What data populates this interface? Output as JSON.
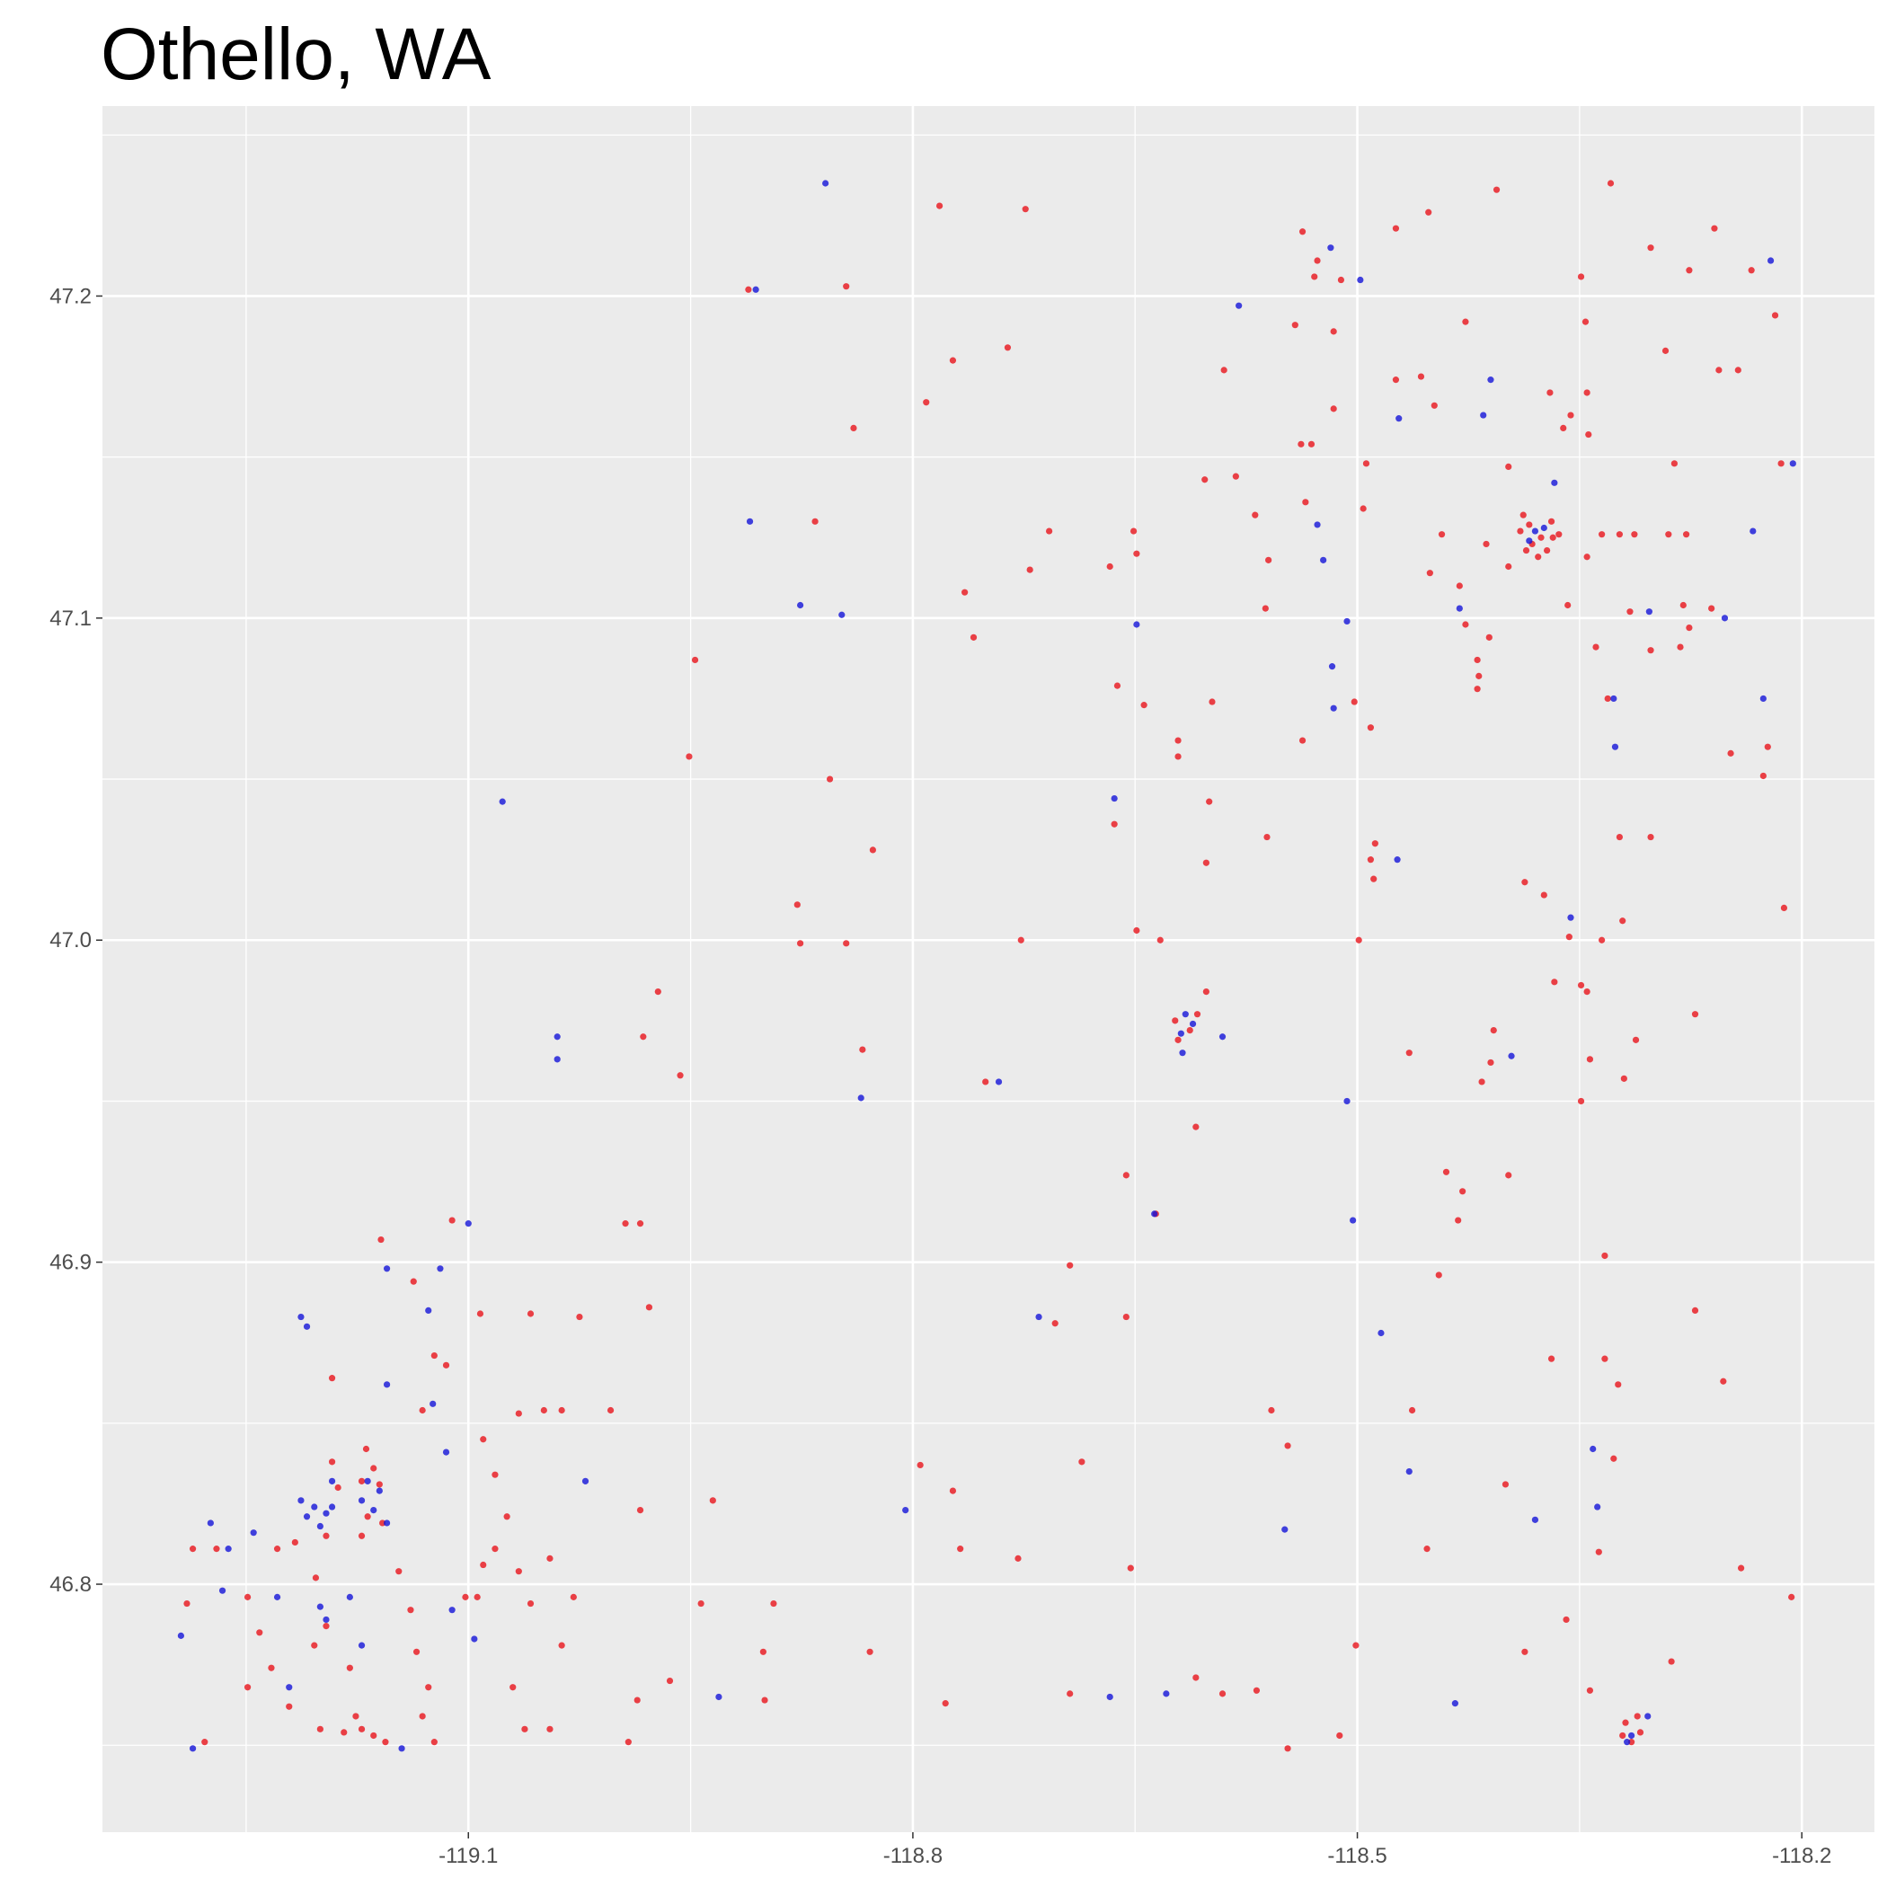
{
  "chart_data": {
    "type": "scatter",
    "title": "Othello, WA",
    "xlim": [
      -119.347,
      -118.151
    ],
    "ylim": [
      46.723,
      47.259
    ],
    "xticks": [
      -119.1,
      -118.8,
      -118.5,
      -118.2
    ],
    "yticks": [
      46.8,
      46.9,
      {
        "value": 47,
        "label": "47.0"
      },
      47.1,
      47.2
    ],
    "grid": true,
    "series": [
      {
        "color": "#e8141c",
        "x": [
          -119.192,
          -119.188,
          -119.196,
          -119.217,
          -119.229,
          -119.249,
          -119.241,
          -119.233,
          -119.221,
          -119.204,
          -119.196,
          -119.18,
          -119.176,
          -119.172,
          -119.164,
          -119.156,
          -119.184,
          -119.2,
          -119.249,
          -119.27,
          -119.29,
          -119.278,
          -119.286,
          -119.147,
          -119.139,
          -119.135,
          -119.127,
          -119.131,
          -119.123,
          -119.102,
          -119.094,
          -119.09,
          -119.082,
          -119.074,
          -119.066,
          -119.058,
          -119.045,
          -119.037,
          -119.029,
          -119.07,
          -119.062,
          -119.045,
          -119.131,
          -119.123,
          -119.115,
          -119.111,
          -119.092,
          -119.058,
          -119.025,
          -119.09,
          -119.082,
          -119.066,
          -119.049,
          -119.037,
          -119.004,
          -118.994,
          -118.984,
          -118.978,
          -118.992,
          -118.986,
          -118.984,
          -118.964,
          -118.943,
          -118.935,
          -118.894,
          -118.901,
          -118.9,
          -118.829,
          -119.137,
          -119.159,
          -119.169,
          -119.192,
          -119.203,
          -118.782,
          -118.724,
          -118.845,
          -118.911,
          -118.84,
          -118.791,
          -118.773,
          -118.736,
          -118.866,
          -118.708,
          -118.721,
          -118.765,
          -118.759,
          -118.947,
          -118.951,
          -118.856,
          -118.827,
          -118.878,
          -118.876,
          -118.845,
          -118.727,
          -118.834,
          -118.972,
          -118.982,
          -118.957,
          -118.751,
          -118.795,
          -118.773,
          -118.768,
          -118.729,
          -118.694,
          -118.704,
          -118.686,
          -118.653,
          -118.656,
          -118.656,
          -118.636,
          -118.633,
          -118.649,
          -118.664,
          -118.662,
          -118.644,
          -118.621,
          -118.621,
          -118.6,
          -118.602,
          -118.609,
          -118.602,
          -118.598,
          -118.651,
          -118.649,
          -118.667,
          -118.59,
          -118.603,
          -118.582,
          -118.569,
          -118.56,
          -118.562,
          -118.542,
          -118.537,
          -118.527,
          -118.529,
          -118.516,
          -118.516,
          -118.531,
          -118.538,
          -118.535,
          -118.496,
          -118.494,
          -118.511,
          -118.474,
          -118.452,
          -118.406,
          -118.427,
          -118.474,
          -118.457,
          -118.448,
          -118.443,
          -118.451,
          -118.431,
          -118.427,
          -118.411,
          -118.419,
          -118.418,
          -118.419,
          -118.398,
          -118.37,
          -118.361,
          -118.356,
          -118.345,
          -118.344,
          -118.358,
          -118.349,
          -118.346,
          -118.329,
          -118.302,
          -118.292,
          -118.276,
          -118.259,
          -118.286,
          -118.276,
          -118.282,
          -118.28,
          -118.261,
          -118.302,
          -118.316,
          -118.339,
          -118.331,
          -118.323,
          -118.313,
          -118.29,
          -118.278,
          -118.256,
          -118.243,
          -118.234,
          -118.218,
          -118.214,
          -118.223,
          -118.248,
          -118.226,
          -118.212,
          -118.272,
          -118.364,
          -118.335,
          -118.345,
          -118.413,
          -118.398,
          -118.387,
          -118.374,
          -118.357,
          -118.335,
          -118.321,
          -118.367,
          -118.349,
          -118.345,
          -118.343,
          -118.349,
          -118.32,
          -118.312,
          -118.323,
          -118.302,
          -118.408,
          -118.41,
          -118.416,
          -118.398,
          -118.44,
          -118.432,
          -118.429,
          -118.445,
          -118.465,
          -118.488,
          -118.491,
          -118.489,
          -118.499,
          -118.491,
          -118.502,
          -118.537,
          -118.561,
          -118.333,
          -118.333,
          -118.324,
          -118.327,
          -118.337,
          -118.359,
          -118.369,
          -118.272,
          -118.253,
          -118.241,
          -118.207,
          -118.387,
          -118.343,
          -118.288,
          -118.4,
          -118.463,
          -118.501,
          -118.512,
          -118.547,
          -118.568,
          -118.591,
          -118.609,
          -118.694,
          -118.778,
          -118.558,
          -118.547,
          -118.453,
          -118.388,
          -118.384,
          -118.376,
          -118.372,
          -118.382,
          -118.39,
          -118.369,
          -118.378,
          -118.386,
          -118.368,
          -118.623,
          -118.613,
          -118.621,
          -118.608,
          -118.319,
          -118.311,
          -118.315,
          -118.309,
          -118.321,
          -119.172,
          -119.16,
          -119.168,
          -119.158,
          -119.172,
          -119.164
        ],
        "values": [
          46.838,
          46.83,
          46.815,
          46.813,
          46.811,
          46.796,
          46.785,
          46.774,
          46.762,
          46.781,
          46.787,
          46.774,
          46.759,
          46.755,
          46.753,
          46.751,
          46.754,
          46.755,
          46.768,
          46.811,
          46.794,
          46.751,
          46.811,
          46.804,
          46.792,
          46.779,
          46.768,
          46.759,
          46.751,
          46.796,
          46.796,
          46.806,
          46.811,
          46.821,
          46.804,
          46.794,
          46.808,
          46.781,
          46.796,
          46.768,
          46.755,
          46.755,
          46.854,
          46.871,
          46.868,
          46.913,
          46.884,
          46.884,
          46.883,
          46.845,
          46.834,
          46.853,
          46.854,
          46.854,
          46.854,
          46.912,
          46.912,
          46.886,
          46.751,
          46.764,
          46.823,
          46.77,
          46.794,
          46.826,
          46.794,
          46.779,
          46.764,
          46.779,
          46.894,
          46.907,
          46.842,
          46.864,
          46.802,
          47.228,
          47.227,
          47.203,
          47.202,
          47.159,
          47.167,
          47.18,
          47.184,
          47.13,
          47.127,
          47.115,
          47.108,
          47.094,
          47.087,
          47.057,
          47.05,
          47.028,
          47.011,
          46.999,
          46.999,
          47.0,
          46.966,
          46.984,
          46.97,
          46.958,
          46.956,
          46.837,
          46.829,
          46.811,
          46.808,
          46.899,
          46.881,
          46.838,
          46.805,
          46.883,
          46.927,
          46.915,
          47.0,
          47.003,
          47.036,
          47.079,
          47.073,
          47.062,
          47.057,
          47.043,
          47.024,
          46.942,
          46.984,
          47.074,
          47.127,
          47.12,
          47.116,
          47.177,
          47.143,
          47.144,
          47.132,
          47.118,
          47.103,
          47.191,
          47.22,
          47.211,
          47.206,
          47.189,
          47.165,
          47.154,
          47.154,
          47.136,
          47.134,
          47.148,
          47.205,
          47.221,
          47.226,
          47.233,
          47.192,
          47.174,
          47.175,
          47.166,
          47.126,
          47.114,
          47.11,
          47.098,
          47.094,
          47.087,
          47.082,
          47.078,
          47.147,
          47.17,
          47.159,
          47.163,
          47.17,
          47.157,
          47.104,
          47.206,
          47.192,
          47.235,
          47.215,
          47.183,
          47.208,
          47.221,
          47.148,
          47.097,
          47.091,
          47.104,
          47.103,
          47.09,
          47.102,
          47.091,
          47.075,
          47.126,
          47.126,
          47.126,
          47.126,
          47.177,
          47.177,
          47.208,
          47.194,
          47.148,
          47.06,
          47.058,
          47.051,
          47.01,
          46.977,
          47.126,
          47.126,
          47.119,
          47.123,
          47.116,
          47.018,
          47.014,
          47.001,
          47.0,
          47.006,
          46.987,
          46.986,
          46.984,
          46.963,
          46.95,
          46.957,
          46.969,
          47.032,
          47.032,
          46.972,
          46.962,
          46.956,
          46.927,
          46.928,
          46.913,
          46.922,
          46.896,
          46.965,
          47.03,
          47.025,
          47.019,
          47.0,
          47.066,
          47.074,
          47.062,
          47.032,
          46.902,
          46.87,
          46.862,
          46.839,
          46.81,
          46.789,
          46.87,
          46.885,
          46.863,
          46.805,
          46.796,
          46.779,
          46.767,
          46.776,
          46.831,
          46.854,
          46.781,
          46.753,
          46.749,
          46.767,
          46.766,
          46.771,
          46.766,
          46.763,
          46.854,
          46.843,
          46.811,
          47.132,
          47.129,
          47.125,
          47.121,
          47.123,
          47.127,
          47.13,
          47.119,
          47.121,
          47.125,
          46.975,
          46.972,
          46.969,
          46.977,
          46.757,
          46.759,
          46.751,
          46.754,
          46.753,
          46.832,
          46.831,
          46.821,
          46.819,
          46.815,
          46.836
        ]
      },
      {
        "color": "#1414d8",
        "x": [
          -118.859,
          -118.906,
          -118.91,
          -118.876,
          -118.848,
          -119.077,
          -119.04,
          -119.04,
          -118.835,
          -118.742,
          -118.805,
          -118.715,
          -118.667,
          -118.629,
          -118.637,
          -118.664,
          -118.649,
          -118.58,
          -118.518,
          -118.498,
          -118.527,
          -118.523,
          -118.507,
          -118.517,
          -118.516,
          -118.503,
          -118.484,
          -118.507,
          -118.472,
          -118.41,
          -118.415,
          -118.431,
          -118.473,
          -118.396,
          -118.591,
          -118.549,
          -118.465,
          -118.434,
          -118.38,
          -118.341,
          -118.338,
          -118.356,
          -118.327,
          -118.326,
          -118.303,
          -118.252,
          -118.226,
          -118.233,
          -118.221,
          -118.206,
          -118.367,
          -118.304,
          -119.294,
          -119.286,
          -119.274,
          -119.266,
          -119.262,
          -119.245,
          -119.213,
          -119.204,
          -119.192,
          -119.213,
          -119.209,
          -119.229,
          -119.196,
          -119.18,
          -119.172,
          -119.168,
          -119.164,
          -119.16,
          -119.155,
          -119.172,
          -119.155,
          -119.155,
          -119.127,
          -119.119,
          -119.115,
          -119.111,
          -119.096,
          -119.021,
          -119.1,
          -119.145,
          -119.221,
          -119.2,
          -118.931,
          -119.124,
          -118.38,
          -118.384,
          -118.374,
          -118.616,
          -118.619,
          -118.611,
          -118.618,
          -118.315,
          -118.318,
          -119.209,
          -119.2,
          -119.196,
          -119.192
        ],
        "values": [
          47.235,
          47.202,
          47.13,
          47.104,
          47.101,
          47.043,
          46.97,
          46.963,
          46.951,
          46.956,
          46.823,
          46.883,
          46.765,
          46.766,
          46.915,
          47.044,
          47.098,
          47.197,
          47.215,
          47.205,
          47.129,
          47.118,
          47.099,
          47.085,
          47.072,
          46.913,
          46.878,
          46.95,
          47.162,
          47.174,
          47.163,
          47.103,
          47.025,
          46.964,
          46.97,
          46.817,
          46.835,
          46.763,
          46.82,
          46.842,
          46.824,
          47.007,
          47.075,
          47.06,
          47.102,
          47.1,
          47.075,
          47.127,
          47.211,
          47.148,
          47.142,
          46.759,
          46.784,
          46.749,
          46.819,
          46.798,
          46.811,
          46.816,
          46.826,
          46.824,
          46.832,
          46.883,
          46.88,
          46.796,
          46.789,
          46.796,
          46.826,
          46.832,
          46.823,
          46.829,
          46.819,
          46.781,
          46.898,
          46.862,
          46.885,
          46.898,
          46.841,
          46.792,
          46.783,
          46.832,
          46.912,
          46.749,
          46.768,
          46.793,
          46.765,
          46.856,
          47.127,
          47.124,
          47.128,
          46.977,
          46.971,
          46.974,
          46.965,
          46.753,
          46.751,
          46.821,
          46.818,
          46.822,
          46.824
        ]
      }
    ]
  }
}
